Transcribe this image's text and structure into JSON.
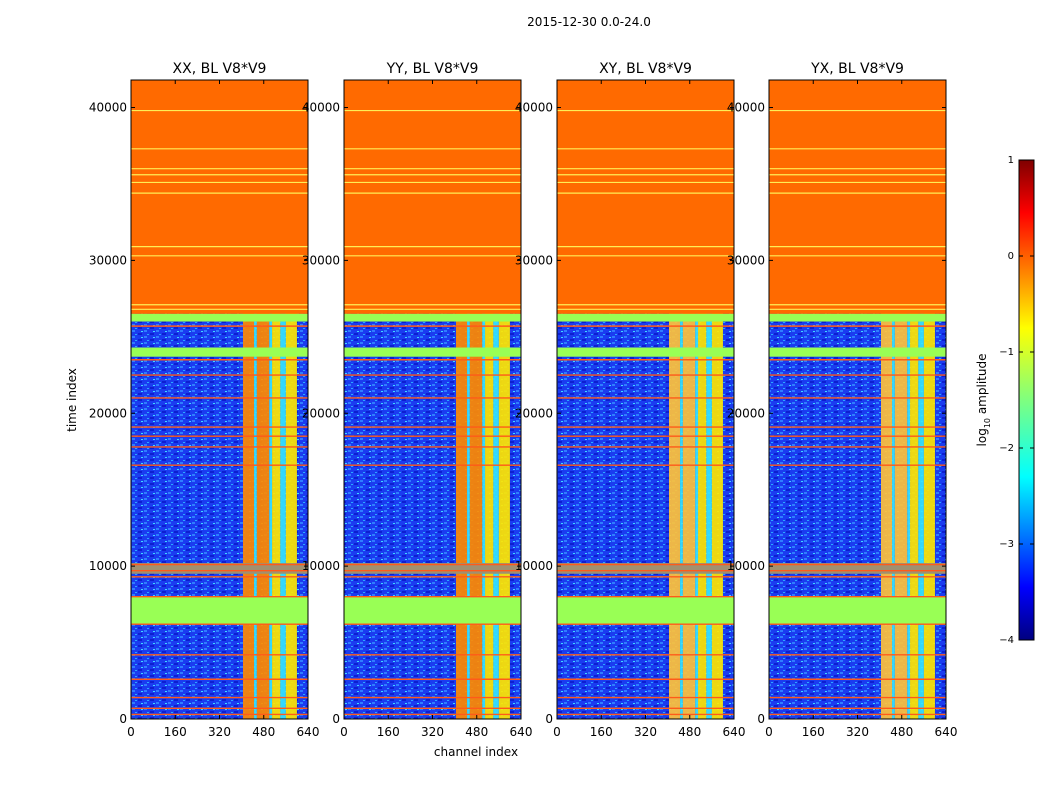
{
  "chart_data": {
    "type": "heatmap",
    "suptitle": "2015-12-30 0.0-24.0",
    "xlabel": "channel index",
    "ylabel": "time index",
    "xlim": [
      0,
      640
    ],
    "ylim": [
      0,
      41800
    ],
    "xticks": [
      "0",
      "160",
      "320",
      "480",
      "640"
    ],
    "yticks": [
      "0",
      "10000",
      "20000",
      "30000",
      "40000"
    ],
    "panels": [
      {
        "title": "XX, BL V8*V9",
        "cross": false
      },
      {
        "title": "YY, BL V8*V9",
        "cross": false
      },
      {
        "title": "XY, BL V8*V9",
        "cross": true
      },
      {
        "title": "YX, BL V8*V9",
        "cross": true
      }
    ],
    "rows": [
      {
        "range": [
          26500,
          41800
        ],
        "kind": "flag_orange"
      },
      {
        "range": [
          26000,
          26500
        ],
        "kind": "flag_green"
      },
      {
        "range": [
          23700,
          24300
        ],
        "kind": "flag_green"
      },
      {
        "range": [
          9500,
          10200
        ],
        "kind": "grey"
      },
      {
        "range": [
          6200,
          8000
        ],
        "kind": "flag_green"
      }
    ],
    "bright_columns": [
      {
        "range": [
          405,
          445
        ],
        "level": "orange"
      },
      {
        "range": [
          445,
          455
        ],
        "level": "cyan"
      },
      {
        "range": [
          455,
          500
        ],
        "level": "orange"
      },
      {
        "range": [
          500,
          510
        ],
        "level": "cyan"
      },
      {
        "range": [
          510,
          540
        ],
        "level": "yellow"
      },
      {
        "range": [
          540,
          560
        ],
        "level": "cyan"
      },
      {
        "range": [
          560,
          600
        ],
        "level": "yellow"
      }
    ],
    "yellow_lines": [
      39800,
      37300,
      36000,
      35600,
      35100,
      34400,
      30900,
      30300,
      27100,
      26800
    ],
    "red_lines": [
      25700,
      23500,
      22500,
      21000,
      19100,
      18500,
      17800,
      16600,
      10100,
      9700,
      9300,
      8000,
      6200,
      4200,
      2600,
      1400,
      700,
      300
    ],
    "colorbar": {
      "label": "log",
      "label_sub": "10",
      "label_rest": " amplitude",
      "range": [
        -4,
        1
      ],
      "ticks": [
        "1",
        "0",
        "−1",
        "−2",
        "−3",
        "−4"
      ],
      "tick_values": [
        1,
        0,
        -1,
        -2,
        -3,
        -4
      ],
      "colormap": "jet"
    }
  }
}
